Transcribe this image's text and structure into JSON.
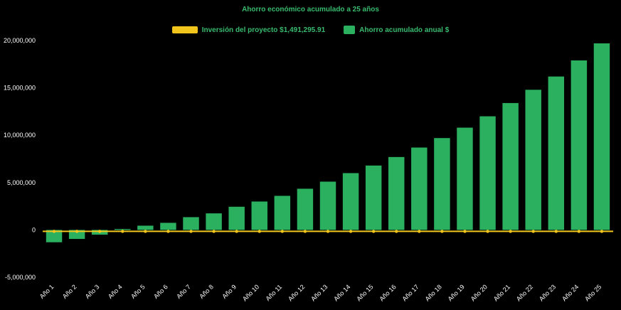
{
  "chart_data": {
    "type": "bar",
    "title": "Ahorro económico acumulado a 25 años",
    "xlabel": "",
    "ylabel": "",
    "categories": [
      "Año 1",
      "Año 2",
      "Año 3",
      "Año 4",
      "Año 5",
      "Año 6",
      "Año 7",
      "Año 8",
      "Año 9",
      "Año 10",
      "Año 11",
      "Año 12",
      "Año 13",
      "Año 14",
      "Año 15",
      "Año 16",
      "Año 17",
      "Año 18",
      "Año 19",
      "Año 20",
      "Año 21",
      "Año 22",
      "Año 23",
      "Año 24",
      "Año 25"
    ],
    "values": [
      -1300000,
      -950000,
      -500000,
      100000,
      450000,
      750000,
      1350000,
      1750000,
      2450000,
      3000000,
      3600000,
      4350000,
      5100000,
      6000000,
      6800000,
      7700000,
      8700000,
      9700000,
      10800000,
      12000000,
      13400000,
      14800000,
      16200000,
      17900000,
      19700000
    ],
    "series": [
      {
        "name": "Inversión del proyecto $1,491,295.91",
        "type": "line",
        "color": "#f2c51d",
        "value": -150000
      },
      {
        "name": "Ahorro acumulado anual $",
        "type": "bar",
        "color": "#2ab05f"
      }
    ],
    "ylim": [
      -5000000,
      20000000
    ],
    "yticks": [
      {
        "value": -5000000,
        "label": "-5,000,000"
      },
      {
        "value": 0,
        "label": "0"
      },
      {
        "value": 5000000,
        "label": "5,000,000"
      },
      {
        "value": 10000000,
        "label": "10,000,000"
      },
      {
        "value": 15000000,
        "label": "15,000,000"
      },
      {
        "value": 20000000,
        "label": "20,000,000"
      }
    ],
    "grid": false,
    "legend_position": "top",
    "colors": {
      "background": "#000000",
      "bar": "#2ab05f",
      "line": "#f2c51d",
      "tick_text": "#ffffff",
      "title_text": "#38bb6e"
    }
  }
}
